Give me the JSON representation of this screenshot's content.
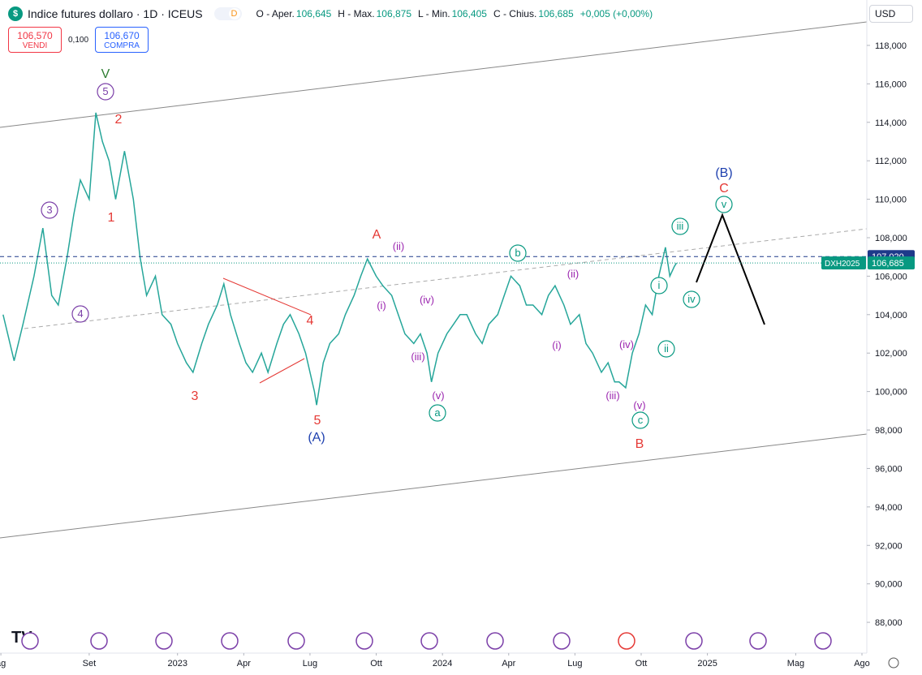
{
  "header": {
    "title": "Indice futures dollaro · 1D · ICEUS",
    "badge": "D",
    "ohlc": [
      {
        "label": "O - Aper.",
        "value": "106,645"
      },
      {
        "label": "H - Max.",
        "value": "106,875"
      },
      {
        "label": "L - Min.",
        "value": "106,405"
      },
      {
        "label": "C - Chius.",
        "value": "106,685"
      }
    ],
    "change": "+0,005 (+0,00%)",
    "sell": {
      "price": "106,570",
      "label": "VENDI"
    },
    "spread": "0,100",
    "buy": {
      "price": "106,670",
      "label": "COMPRA"
    },
    "currency": "USD"
  },
  "chart_data": {
    "type": "line",
    "color": "#26a69a",
    "x": [
      4.1,
      4.6,
      5.0,
      5.5,
      5.9,
      6.3,
      6.6,
      7.0,
      7.3,
      7.6,
      8.0,
      8.3,
      8.6,
      8.9,
      9.2,
      9.6,
      10.0,
      10.3,
      10.6,
      11.0,
      11.3,
      11.7,
      12.0,
      12.4,
      12.7,
      13.1,
      13.4,
      13.8,
      14.1,
      14.4,
      14.8,
      15.1,
      15.4,
      15.8,
      16.1,
      16.5,
      16.8,
      17.1,
      17.5,
      17.8,
      18.2,
      18.3,
      18.6,
      18.9,
      19.3,
      19.6,
      20.0,
      20.3,
      20.6,
      21.0,
      21.3,
      21.7,
      22.0,
      22.3,
      22.7,
      23.0,
      23.3,
      23.5,
      23.8,
      24.2,
      24.5,
      24.8,
      25.1,
      25.5,
      25.8,
      26.1,
      26.5,
      26.8,
      27.1,
      27.5,
      27.8,
      28.1,
      28.5,
      28.8,
      29.1,
      29.5,
      29.8,
      30.2,
      30.5,
      30.8,
      31.2,
      31.5,
      31.8,
      32.0,
      32.3,
      32.6,
      32.9,
      33.2,
      33.5,
      33.8,
      34.1,
      34.3,
      34.5,
      34.6
    ],
    "values": [
      104000,
      101600,
      103500,
      106000,
      108500,
      105000,
      104500,
      107000,
      109200,
      111000,
      110000,
      114500,
      113000,
      112000,
      110000,
      112500,
      110000,
      107000,
      105000,
      106000,
      104000,
      103500,
      102500,
      101500,
      101000,
      102500,
      103500,
      104500,
      105600,
      104000,
      102500,
      101500,
      101000,
      102000,
      101000,
      102500,
      103500,
      104000,
      103000,
      102000,
      100000,
      99300,
      101500,
      102500,
      103000,
      104000,
      105000,
      106000,
      106900,
      106000,
      105500,
      105000,
      104000,
      103000,
      102500,
      103000,
      102000,
      100500,
      102000,
      103000,
      103500,
      104000,
      104000,
      103000,
      102500,
      103500,
      104000,
      105000,
      106000,
      105500,
      104500,
      104500,
      104000,
      105000,
      105500,
      104500,
      103500,
      104000,
      102500,
      102000,
      101000,
      101500,
      100500,
      100500,
      100200,
      102000,
      103000,
      104500,
      104000,
      106000,
      107500,
      106000,
      106500,
      106685
    ],
    "xlim": [
      3.96,
      43.22
    ],
    "xticks": [
      {
        "value": 4,
        "label": "ag"
      },
      {
        "value": 8,
        "label": "Set"
      },
      {
        "value": 12,
        "label": "2023"
      },
      {
        "value": 15,
        "label": "Apr"
      },
      {
        "value": 18,
        "label": "Lug"
      },
      {
        "value": 21,
        "label": "Ott"
      },
      {
        "value": 24,
        "label": "2024"
      },
      {
        "value": 27,
        "label": "Apr"
      },
      {
        "value": 30,
        "label": "Lug"
      },
      {
        "value": 33,
        "label": "Ott"
      },
      {
        "value": 36,
        "label": "2025"
      },
      {
        "value": 40,
        "label": "Mag"
      },
      {
        "value": 43,
        "label": "Ago"
      }
    ],
    "ylim": [
      86400,
      120360
    ],
    "yticks": [
      {
        "value": 88000,
        "label": "88,000"
      },
      {
        "value": 90000,
        "label": "90,000"
      },
      {
        "value": 92000,
        "label": "92,000"
      },
      {
        "value": 94000,
        "label": "94,000"
      },
      {
        "value": 96000,
        "label": "96,000"
      },
      {
        "value": 98000,
        "label": "98,000"
      },
      {
        "value": 100000,
        "label": "100,000"
      },
      {
        "value": 102000,
        "label": "102,000"
      },
      {
        "value": 104000,
        "label": "104,000"
      },
      {
        "value": 106000,
        "label": "106,000"
      },
      {
        "value": 108000,
        "label": "108,000"
      },
      {
        "value": 110000,
        "label": "110,000"
      },
      {
        "value": 112000,
        "label": "112,000"
      },
      {
        "value": 114000,
        "label": "114,000"
      },
      {
        "value": 116000,
        "label": "116,000"
      },
      {
        "value": 118000,
        "label": "118,000"
      }
    ],
    "price_lines": [
      {
        "value": 107020,
        "label": "107,020",
        "color": "#1e3a8a"
      },
      {
        "value": 106685,
        "label": "106,685",
        "color": "#089981",
        "name": "DXH2025"
      }
    ],
    "annotations": [
      "V",
      "5",
      "2",
      "1",
      "3",
      "4",
      "3",
      "4",
      "5",
      "(A)",
      "A",
      "(ii)",
      "(i)",
      "(iv)",
      "(iii)",
      "(v)",
      "a",
      "b",
      "(ii)",
      "(i)",
      "(iv)",
      "(iii)",
      "(v)",
      "c",
      "B",
      "i",
      "ii",
      "iii",
      "iv",
      "v",
      "C",
      "(B)"
    ]
  }
}
